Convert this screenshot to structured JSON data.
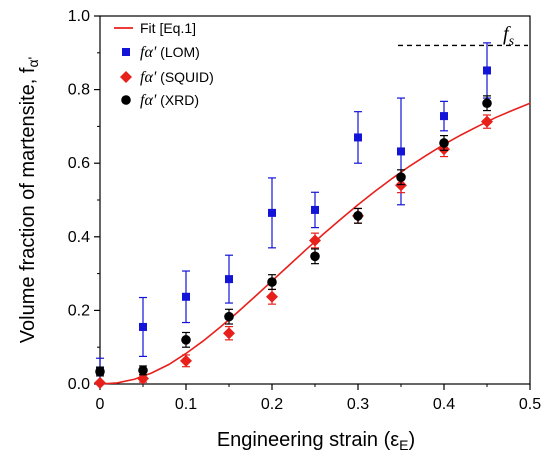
{
  "chart_data": {
    "type": "scatter",
    "title": "",
    "xlabel": "Engineering strain (ε",
    "xlabel_sub": "E",
    "xlabel_close": ")",
    "ylabel": "Volume fraction of martensite, f",
    "ylabel_sub": "α'",
    "xlim": [
      0,
      0.5
    ],
    "ylim": [
      0,
      1.0
    ],
    "x_ticks": [
      "0",
      "0.1",
      "0.2",
      "0.3",
      "0.4",
      "0.5"
    ],
    "y_ticks": [
      "0.0",
      "0.2",
      "0.4",
      "0.6",
      "0.8",
      "1.0"
    ],
    "legend_position": "top-left",
    "grid": false,
    "annotation": {
      "label": "f",
      "subscript": "s",
      "y": 0.92,
      "x_start": 0.35,
      "x_end": 0.5
    },
    "series": [
      {
        "name": "Fit [Eq.1]",
        "kind": "line",
        "color": "#e8201c",
        "x": [
          0,
          0.02,
          0.04,
          0.06,
          0.08,
          0.1,
          0.12,
          0.14,
          0.16,
          0.18,
          0.2,
          0.22,
          0.24,
          0.26,
          0.28,
          0.3,
          0.32,
          0.34,
          0.36,
          0.38,
          0.4,
          0.42,
          0.44,
          0.46,
          0.48,
          0.5
        ],
        "y": [
          0.0,
          0.003,
          0.013,
          0.03,
          0.053,
          0.083,
          0.117,
          0.155,
          0.195,
          0.237,
          0.28,
          0.323,
          0.366,
          0.408,
          0.448,
          0.487,
          0.524,
          0.559,
          0.592,
          0.622,
          0.651,
          0.677,
          0.701,
          0.724,
          0.744,
          0.763
        ]
      },
      {
        "name_prefix": "fα'",
        "name": " (LOM)",
        "kind": "marker",
        "marker": "square",
        "color": "#1414d8",
        "x": [
          0,
          0.05,
          0.1,
          0.15,
          0.2,
          0.25,
          0.3,
          0.35,
          0.4,
          0.45
        ],
        "y": [
          0.035,
          0.155,
          0.237,
          0.285,
          0.465,
          0.473,
          0.67,
          0.632,
          0.728,
          0.852
        ],
        "err": [
          0.035,
          0.08,
          0.07,
          0.065,
          0.095,
          0.048,
          0.07,
          0.145,
          0.04,
          0.075
        ]
      },
      {
        "name_prefix": "fα'",
        "name": " (SQUID)",
        "kind": "marker",
        "marker": "diamond",
        "color": "#e8201c",
        "x": [
          0,
          0.05,
          0.1,
          0.15,
          0.2,
          0.25,
          0.3,
          0.35,
          0.4,
          0.45
        ],
        "y": [
          0.003,
          0.015,
          0.063,
          0.138,
          0.237,
          0.39,
          0.457,
          0.54,
          0.638,
          0.713
        ],
        "err": [
          0.003,
          0.01,
          0.016,
          0.018,
          0.02,
          0.02,
          0.02,
          0.02,
          0.02,
          0.018
        ]
      },
      {
        "name_prefix": "fα'",
        "name": " (XRD)",
        "kind": "marker",
        "marker": "circle",
        "color": "#000000",
        "x": [
          0,
          0.05,
          0.1,
          0.15,
          0.2,
          0.25,
          0.3,
          0.35,
          0.4,
          0.45
        ],
        "y": [
          0.034,
          0.037,
          0.12,
          0.183,
          0.277,
          0.347,
          0.457,
          0.562,
          0.655,
          0.763
        ],
        "err": [
          0.012,
          0.012,
          0.02,
          0.02,
          0.02,
          0.02,
          0.02,
          0.02,
          0.02,
          0.02
        ]
      }
    ]
  }
}
